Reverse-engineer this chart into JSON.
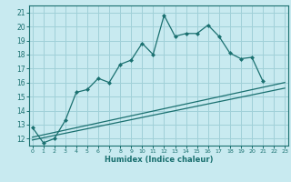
{
  "xlabel": "Humidex (Indice chaleur)",
  "bg_color": "#c8eaf0",
  "grid_color": "#a0d0d8",
  "line_color": "#1a7070",
  "xlim": [
    -0.3,
    23.3
  ],
  "ylim": [
    11.5,
    21.5
  ],
  "yticks": [
    12,
    13,
    14,
    15,
    16,
    17,
    18,
    19,
    20,
    21
  ],
  "xticks": [
    0,
    1,
    2,
    3,
    4,
    5,
    6,
    7,
    8,
    9,
    10,
    11,
    12,
    13,
    14,
    15,
    16,
    17,
    18,
    19,
    20,
    21,
    22,
    23
  ],
  "line1_x": [
    0,
    1,
    2,
    3,
    4,
    5,
    6,
    7,
    8,
    9,
    10,
    11,
    12,
    13,
    14,
    15,
    16,
    17,
    18,
    19,
    20,
    21
  ],
  "line1_y": [
    12.8,
    11.7,
    12.0,
    13.3,
    15.3,
    15.5,
    16.3,
    16.0,
    17.3,
    17.6,
    18.8,
    18.0,
    20.8,
    19.3,
    19.5,
    19.5,
    20.1,
    19.3,
    18.1,
    17.7,
    17.8,
    16.1
  ],
  "line2_x": [
    0,
    23
  ],
  "line2_y": [
    12.1,
    16.0
  ],
  "line3_x": [
    0,
    23
  ],
  "line3_y": [
    11.9,
    15.6
  ]
}
